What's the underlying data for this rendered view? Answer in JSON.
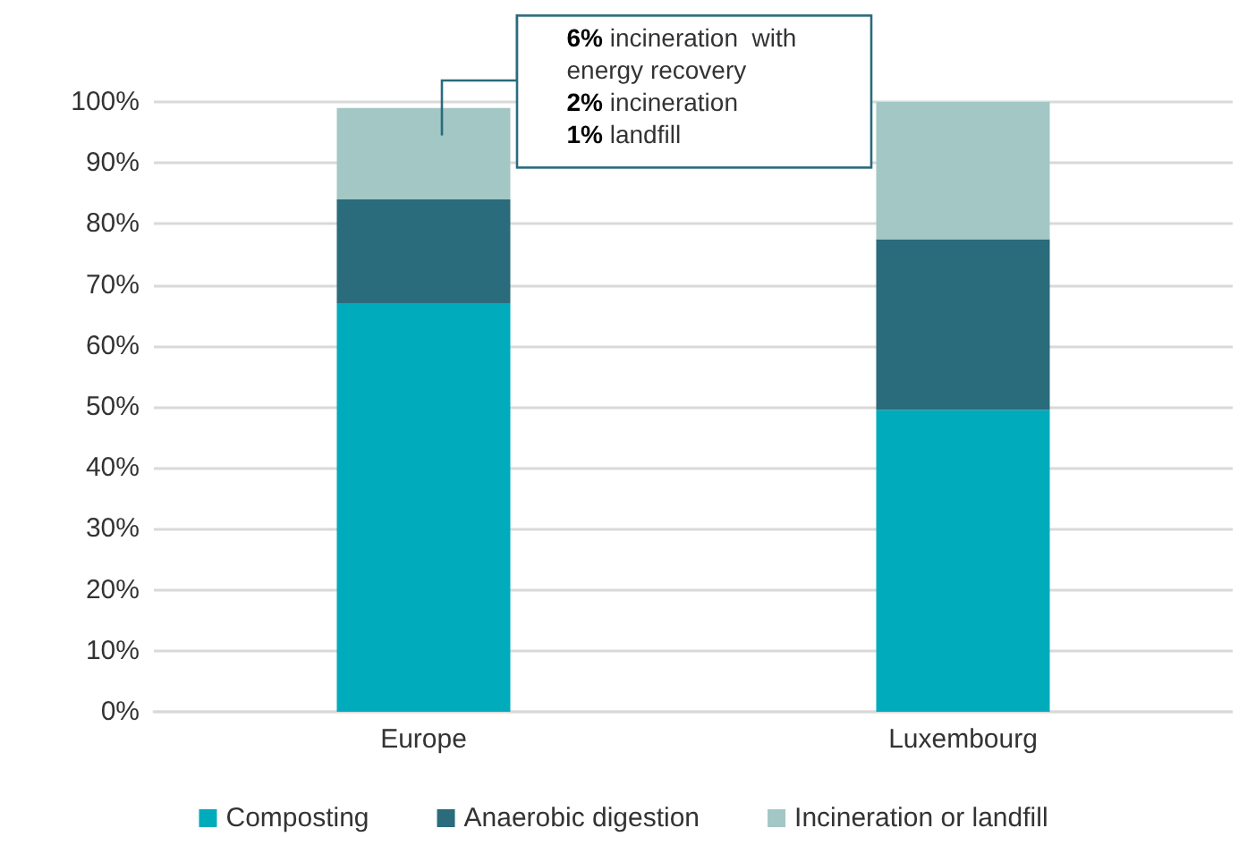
{
  "chart_data": {
    "type": "bar",
    "stacked": true,
    "categories": [
      "Europe",
      "Luxembourg"
    ],
    "series": [
      {
        "name": "Composting",
        "color": "#00acbb",
        "values": [
          67,
          49.5
        ]
      },
      {
        "name": "Anaerobic digestion",
        "color": "#2a6b7c",
        "values": [
          17,
          28
        ]
      },
      {
        "name": "Incineration or landfill",
        "color": "#a3c7c4",
        "values": [
          15,
          22.5
        ]
      }
    ],
    "ylim": [
      0,
      100
    ],
    "yticks": [
      {
        "value": 0,
        "label": "0%"
      },
      {
        "value": 10,
        "label": "10%"
      },
      {
        "value": 20,
        "label": "20%"
      },
      {
        "value": 30,
        "label": "30%"
      },
      {
        "value": 40,
        "label": "40%"
      },
      {
        "value": 50,
        "label": "50%"
      },
      {
        "value": 60,
        "label": "60%"
      },
      {
        "value": 70,
        "label": "70%"
      },
      {
        "value": 80,
        "label": "80%"
      },
      {
        "value": 90,
        "label": "90%"
      },
      {
        "value": 100,
        "label": "100%"
      }
    ],
    "grid": "y",
    "legend": "bottom",
    "annotations": [
      "6% incineration  with\nenergy recovery\n2% incineration\n1% landfill"
    ]
  }
}
